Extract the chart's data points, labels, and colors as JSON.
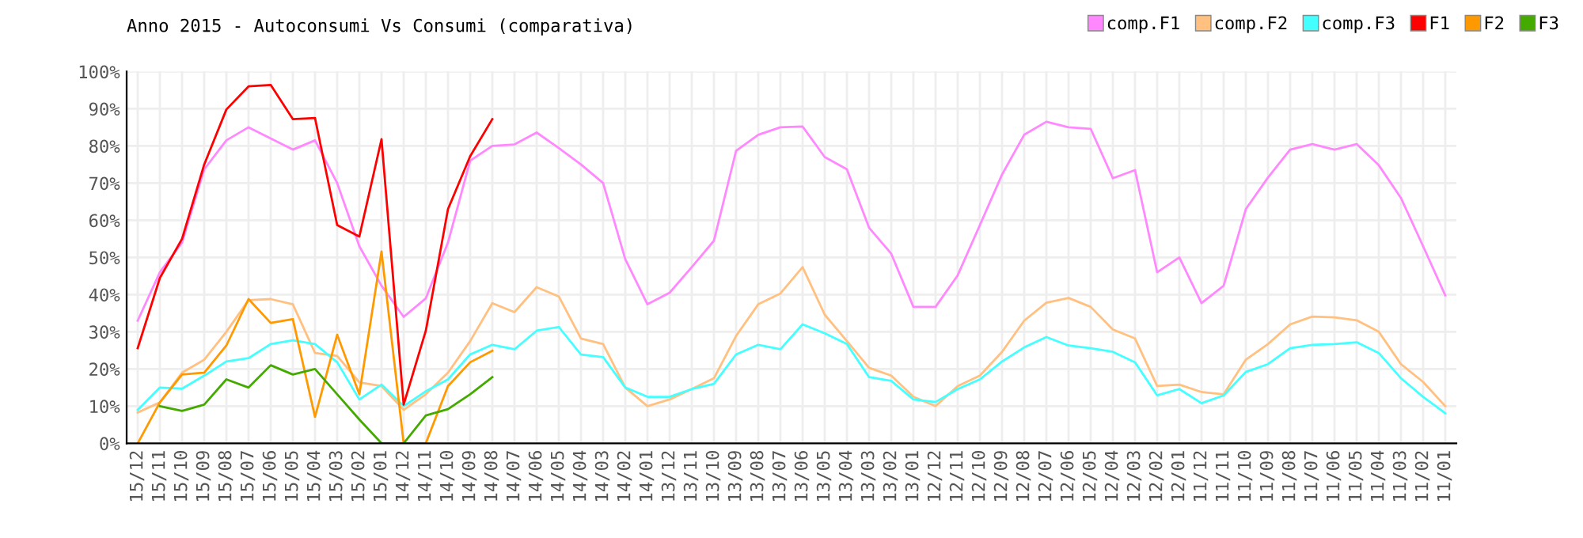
{
  "chart_data": {
    "type": "line",
    "title": "Anno 2015 - Autoconsumi Vs Consumi (comparativa)",
    "categories": [
      "15/12",
      "15/11",
      "15/10",
      "15/09",
      "15/08",
      "15/07",
      "15/06",
      "15/05",
      "15/04",
      "15/03",
      "15/02",
      "15/01",
      "14/12",
      "14/11",
      "14/10",
      "14/09",
      "14/08",
      "14/07",
      "14/06",
      "14/05",
      "14/04",
      "14/03",
      "14/02",
      "14/01",
      "13/12",
      "13/11",
      "13/10",
      "13/09",
      "13/08",
      "13/07",
      "13/06",
      "13/05",
      "13/04",
      "13/03",
      "13/02",
      "13/01",
      "12/12",
      "12/11",
      "12/10",
      "12/09",
      "12/08",
      "12/07",
      "12/06",
      "12/05",
      "12/04",
      "12/03",
      "12/02",
      "12/01",
      "11/12",
      "11/11",
      "11/10",
      "11/09",
      "11/08",
      "11/07",
      "11/06",
      "11/05",
      "11/04",
      "11/03",
      "11/02",
      "11/01"
    ],
    "series": [
      {
        "name": "comp.F1",
        "color": "#ff88ff",
        "values": [
          33,
          46,
          54,
          73.7,
          81.5,
          85,
          82,
          79,
          81.5,
          70,
          53,
          42.4,
          34,
          39,
          54,
          76,
          80,
          80.4,
          83.6,
          79.4,
          75,
          70,
          49.5,
          37.4,
          40.5,
          47.4,
          54.5,
          78.7,
          83,
          85,
          85.2,
          77,
          73.7,
          58,
          51,
          36.7,
          36.7,
          45.2,
          58.7,
          72.3,
          83,
          86.5,
          85,
          84.6,
          71.3,
          73.5,
          46,
          50,
          37.7,
          42.4,
          63,
          71.5,
          79,
          80.5,
          79,
          80.5,
          74.8,
          66,
          53,
          39.8
        ]
      },
      {
        "name": "comp.F2",
        "color": "#ffc080",
        "values": [
          8.3,
          11,
          19,
          22.5,
          30,
          38.5,
          38.8,
          37.4,
          24.3,
          23.5,
          16.4,
          15.4,
          9,
          13.2,
          19,
          27.5,
          37.7,
          35.3,
          42,
          39.5,
          28.2,
          26.7,
          15,
          10,
          11.8,
          14.6,
          17.5,
          28.9,
          37.4,
          40.3,
          47.4,
          34.6,
          27.5,
          20.3,
          18.2,
          12.5,
          10,
          15.4,
          18.2,
          24.6,
          33,
          37.8,
          39.1,
          36.7,
          30.6,
          28.2,
          15.4,
          15.8,
          13.8,
          13.2,
          22.5,
          26.7,
          32,
          34.1,
          33.9,
          33.1,
          30,
          21.3,
          16.5,
          10
        ]
      },
      {
        "name": "comp.F3",
        "color": "#44ffff",
        "values": [
          9,
          15,
          14.7,
          18.2,
          22,
          22.9,
          26.7,
          27.7,
          26.7,
          21.8,
          11.8,
          15.8,
          10,
          14,
          17.2,
          23.9,
          26.5,
          25.3,
          30.3,
          31.3,
          23.9,
          23.2,
          15,
          12.5,
          12.5,
          14.6,
          16,
          23.9,
          26.5,
          25.3,
          32,
          29.6,
          26.7,
          17.8,
          16.8,
          11.8,
          11.1,
          14.6,
          17.2,
          22,
          25.8,
          28.6,
          26.3,
          25.6,
          24.6,
          21.8,
          12.9,
          14.6,
          10.8,
          12.9,
          19.2,
          21.3,
          25.6,
          26.5,
          26.7,
          27.2,
          24.3,
          17.5,
          12.5,
          8.1
        ]
      },
      {
        "name": "F1",
        "color": "#ff0000",
        "values": [
          25.6,
          44.5,
          55,
          75,
          89.8,
          96,
          96.4,
          87.2,
          87.5,
          58.7,
          55.6,
          81.8,
          10.4,
          30.3,
          63,
          77.2,
          87.2,
          null,
          null,
          null,
          null,
          null,
          null,
          null,
          null,
          null,
          null,
          null,
          null,
          null,
          null,
          null,
          null,
          null,
          null,
          null,
          null,
          null,
          null,
          null,
          null,
          null,
          null,
          null,
          null,
          null,
          null,
          null,
          null,
          null,
          null,
          null,
          null,
          null,
          null,
          null,
          null,
          null,
          null,
          null
        ]
      },
      {
        "name": "F2",
        "color": "#ff9900",
        "values": [
          0,
          11,
          18.5,
          19,
          26.3,
          38.8,
          32.4,
          33.4,
          7.1,
          29.2,
          13.2,
          51.6,
          0,
          0,
          15.4,
          21.8,
          24.9,
          null,
          null,
          null,
          null,
          null,
          null,
          null,
          null,
          null,
          null,
          null,
          null,
          null,
          null,
          null,
          null,
          null,
          null,
          null,
          null,
          null,
          null,
          null,
          null,
          null,
          null,
          null,
          null,
          null,
          null,
          null,
          null,
          null,
          null,
          null,
          null,
          null,
          null,
          null,
          null,
          null,
          null,
          null
        ]
      },
      {
        "name": "F3",
        "color": "#44aa00",
        "values": [
          null,
          10,
          8.7,
          10.4,
          17.2,
          15,
          21,
          18.5,
          20,
          13.2,
          6.4,
          0,
          0,
          7.5,
          9.2,
          13.2,
          17.8,
          null,
          null,
          null,
          null,
          null,
          null,
          null,
          null,
          null,
          null,
          null,
          null,
          null,
          null,
          null,
          null,
          null,
          null,
          null,
          null,
          null,
          null,
          null,
          null,
          null,
          null,
          null,
          null,
          null,
          null,
          null,
          null,
          null,
          null,
          null,
          null,
          null,
          null,
          null,
          null,
          null,
          null,
          null
        ]
      }
    ],
    "ylim": [
      0,
      100
    ],
    "yticks": [
      {
        "value": 0,
        "label": "0%"
      },
      {
        "value": 10,
        "label": "10%"
      },
      {
        "value": 20,
        "label": "20%"
      },
      {
        "value": 30,
        "label": "30%"
      },
      {
        "value": 40,
        "label": "40%"
      },
      {
        "value": 50,
        "label": "50%"
      },
      {
        "value": 60,
        "label": "60%"
      },
      {
        "value": 70,
        "label": "70%"
      },
      {
        "value": 80,
        "label": "80%"
      },
      {
        "value": 90,
        "label": "90%"
      },
      {
        "value": 100,
        "label": "100%"
      }
    ],
    "grid": true,
    "legend": "top right",
    "marker": "none",
    "line_style": "solid"
  }
}
